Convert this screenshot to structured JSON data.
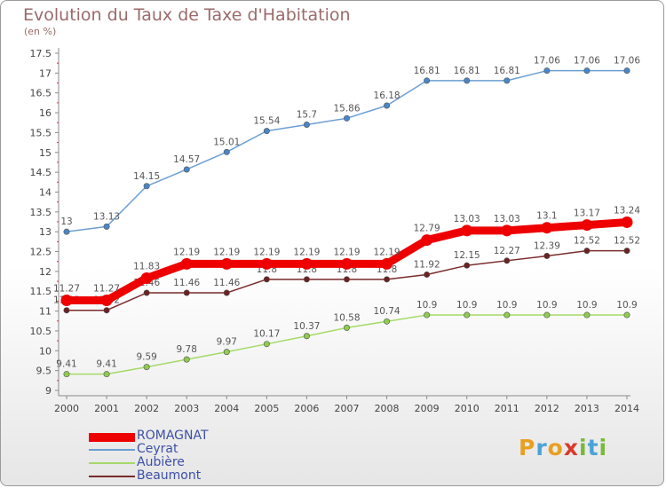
{
  "title": "Evolution du Taux de Taxe d'Habitation",
  "unit_label": "(en %)",
  "logo": {
    "letters": [
      "P",
      "r",
      "o",
      "x",
      "i",
      "t",
      "i"
    ],
    "colors": [
      "#e8a020",
      "#4aa3d8",
      "#e8a020",
      "#d83a2a",
      "#7ab83a",
      "#4aa3d8",
      "#7ab83a"
    ]
  },
  "chart_data": {
    "type": "line",
    "x": [
      "2000",
      "2001",
      "2002",
      "2003",
      "2004",
      "2005",
      "2006",
      "2007",
      "2008",
      "2009",
      "2010",
      "2011",
      "2012",
      "2013",
      "2014"
    ],
    "yticks": [
      "9",
      "9.5",
      "10",
      "10.5",
      "11",
      "11.5",
      "12",
      "12.5",
      "13",
      "13.5",
      "14",
      "14.5",
      "15",
      "15.5",
      "16",
      "16.5",
      "17",
      "17.5"
    ],
    "ylim": [
      9,
      17.5
    ],
    "grid": false,
    "legend_position": "bottom-left",
    "series": [
      {
        "name": "Ceyrat",
        "color": "#6b9fd3",
        "marker": "#4a86c5",
        "values": [
          13,
          13.13,
          14.15,
          14.57,
          15.01,
          15.54,
          15.7,
          15.86,
          16.18,
          16.81,
          16.81,
          16.81,
          17.06,
          17.06,
          17.06
        ],
        "labels": [
          "13",
          "13.13",
          "14.15",
          "14.57",
          "15.01",
          "15.54",
          "15.7",
          "15.86",
          "16.18",
          "16.81",
          "16.81",
          "16.81",
          "17.06",
          "17.06",
          "17.06"
        ]
      },
      {
        "name": "Aubière",
        "color": "#a6d96a",
        "marker": "#8fcb50",
        "values": [
          9.41,
          9.41,
          9.59,
          9.78,
          9.97,
          10.17,
          10.37,
          10.58,
          10.74,
          10.9,
          10.9,
          10.9,
          10.9,
          10.9,
          10.9
        ],
        "labels": [
          "9.41",
          "9.41",
          "9.59",
          "9.78",
          "9.97",
          "10.17",
          "10.37",
          "10.58",
          "10.74",
          "10.9",
          "10.9",
          "10.9",
          "10.9",
          "10.9",
          "10.9"
        ]
      },
      {
        "name": "Beaumont",
        "color": "#7a2a2a",
        "marker": "#6a2222",
        "values": [
          11.02,
          11.02,
          11.46,
          11.46,
          11.46,
          11.8,
          11.8,
          11.8,
          11.8,
          11.92,
          12.15,
          12.27,
          12.39,
          12.52,
          12.52
        ],
        "labels": [
          "11.02",
          "11.02",
          "11.46",
          "11.46",
          "11.46",
          "11.8",
          "11.8",
          "11.8",
          "11.8",
          "11.92",
          "12.15",
          "12.27",
          "12.39",
          "12.52",
          "12.52"
        ]
      },
      {
        "name": "ROMAGNAT",
        "color": "#ee0000",
        "marker": "#ee0000",
        "bold": true,
        "values": [
          11.27,
          11.27,
          11.83,
          12.19,
          12.19,
          12.19,
          12.19,
          12.19,
          12.19,
          12.79,
          13.03,
          13.03,
          13.1,
          13.17,
          13.24
        ],
        "labels": [
          "11.27",
          "11.27",
          "11.83",
          "12.19",
          "12.19",
          "12.19",
          "12.19",
          "12.19",
          "12.19",
          "12.79",
          "13.03",
          "13.03",
          "13.1",
          "13.17",
          "13.24"
        ]
      }
    ]
  },
  "legend": [
    {
      "label": "ROMAGNAT",
      "color": "#ee0000",
      "bold": true
    },
    {
      "label": "Ceyrat",
      "color": "#6b9fd3"
    },
    {
      "label": "Aubière",
      "color": "#a6d96a"
    },
    {
      "label": "Beaumont",
      "color": "#7a2a2a"
    }
  ]
}
